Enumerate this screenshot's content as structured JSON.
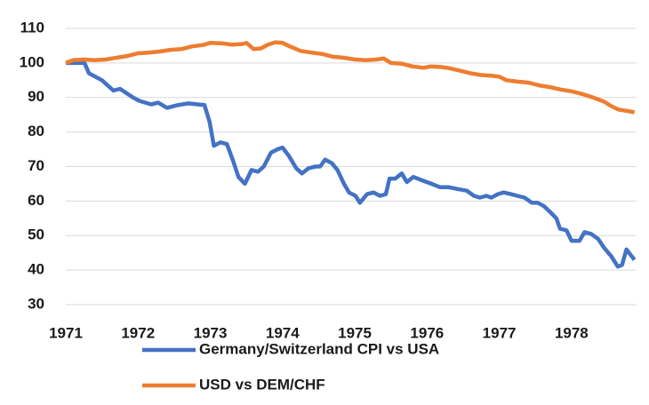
{
  "chart_data": {
    "type": "line",
    "xlim": [
      1971,
      1978.9
    ],
    "xticks": [
      1971,
      1972,
      1973,
      1974,
      1975,
      1976,
      1977,
      1978
    ],
    "ylim": [
      30,
      110
    ],
    "yticks": [
      30,
      40,
      50,
      60,
      70,
      80,
      90,
      100,
      110
    ],
    "grid": true,
    "legend": "bottom",
    "series": [
      {
        "name": "Germany/Switzerland CPI vs USA",
        "color": "#4472c4",
        "x": [
          1971.0,
          1971.26,
          1971.32,
          1971.5,
          1971.66,
          1971.75,
          1971.93,
          1972.02,
          1972.18,
          1972.28,
          1972.4,
          1972.55,
          1972.7,
          1972.82,
          1972.92,
          1972.99,
          1973.05,
          1973.14,
          1973.23,
          1973.31,
          1973.39,
          1973.48,
          1973.57,
          1973.66,
          1973.74,
          1973.84,
          1973.93,
          1974.0,
          1974.09,
          1974.19,
          1974.27,
          1974.36,
          1974.46,
          1974.52,
          1974.59,
          1974.68,
          1974.76,
          1974.85,
          1974.92,
          1975.01,
          1975.07,
          1975.17,
          1975.26,
          1975.35,
          1975.43,
          1975.48,
          1975.56,
          1975.65,
          1975.72,
          1975.81,
          1975.93,
          1976.06,
          1976.18,
          1976.3,
          1976.42,
          1976.55,
          1976.65,
          1976.73,
          1976.82,
          1976.89,
          1976.98,
          1977.06,
          1977.16,
          1977.25,
          1977.35,
          1977.45,
          1977.53,
          1977.62,
          1977.72,
          1977.79,
          1977.84,
          1977.93,
          1978.0,
          1978.11,
          1978.18,
          1978.27,
          1978.37,
          1978.45,
          1978.55,
          1978.64,
          1978.7,
          1978.76,
          1978.87
        ],
        "values": [
          100,
          100,
          97,
          95,
          92,
          92.5,
          90,
          89,
          88,
          88.5,
          87,
          87.8,
          88.3,
          88,
          87.8,
          83,
          76,
          77,
          76.5,
          72,
          67,
          65,
          69,
          68.5,
          70,
          74,
          75,
          75.5,
          73,
          69.5,
          68,
          69.5,
          70,
          70,
          72,
          71,
          69,
          65,
          62.5,
          61.5,
          59.5,
          62,
          62.5,
          61.5,
          62,
          66.5,
          66.5,
          68,
          65.5,
          67,
          66,
          65,
          64,
          64,
          63.5,
          63,
          61.5,
          61,
          61.5,
          61,
          62,
          62.5,
          62,
          61.5,
          61,
          59.5,
          59.5,
          58.5,
          56.5,
          55,
          52,
          51.5,
          48.5,
          48.5,
          51,
          50.5,
          49,
          46.5,
          44,
          41,
          41.5,
          46,
          43
        ]
      },
      {
        "name": "USD vs DEM/CHF",
        "color": "#ed7d31",
        "x": [
          1971.0,
          1971.1,
          1971.25,
          1971.4,
          1971.55,
          1971.7,
          1971.85,
          1972.0,
          1972.15,
          1972.3,
          1972.45,
          1972.6,
          1972.75,
          1972.9,
          1973.0,
          1973.15,
          1973.3,
          1973.45,
          1973.5,
          1973.6,
          1973.7,
          1973.8,
          1973.9,
          1974.0,
          1974.1,
          1974.25,
          1974.4,
          1974.55,
          1974.7,
          1974.85,
          1975.0,
          1975.15,
          1975.3,
          1975.4,
          1975.5,
          1975.65,
          1975.8,
          1975.95,
          1976.05,
          1976.2,
          1976.3,
          1976.45,
          1976.6,
          1976.75,
          1976.9,
          1977.0,
          1977.1,
          1977.25,
          1977.4,
          1977.55,
          1977.7,
          1977.85,
          1978.0,
          1978.15,
          1978.3,
          1978.45,
          1978.55,
          1978.65,
          1978.8,
          1978.87
        ],
        "values": [
          100,
          100.8,
          101,
          100.8,
          101,
          101.5,
          102,
          102.8,
          103,
          103.3,
          103.8,
          104,
          104.8,
          105.2,
          105.8,
          105.7,
          105.3,
          105.5,
          105.8,
          104,
          104.2,
          105.3,
          106,
          105.8,
          104.8,
          103.5,
          103,
          102.6,
          101.8,
          101.5,
          101,
          100.8,
          101,
          101.3,
          100,
          99.8,
          99,
          98.6,
          99,
          98.8,
          98.5,
          97.8,
          97,
          96.5,
          96.3,
          96,
          95,
          94.6,
          94.3,
          93.5,
          93,
          92.3,
          91.8,
          91,
          90,
          88.8,
          87.5,
          86.5,
          86,
          85.7
        ]
      }
    ]
  }
}
